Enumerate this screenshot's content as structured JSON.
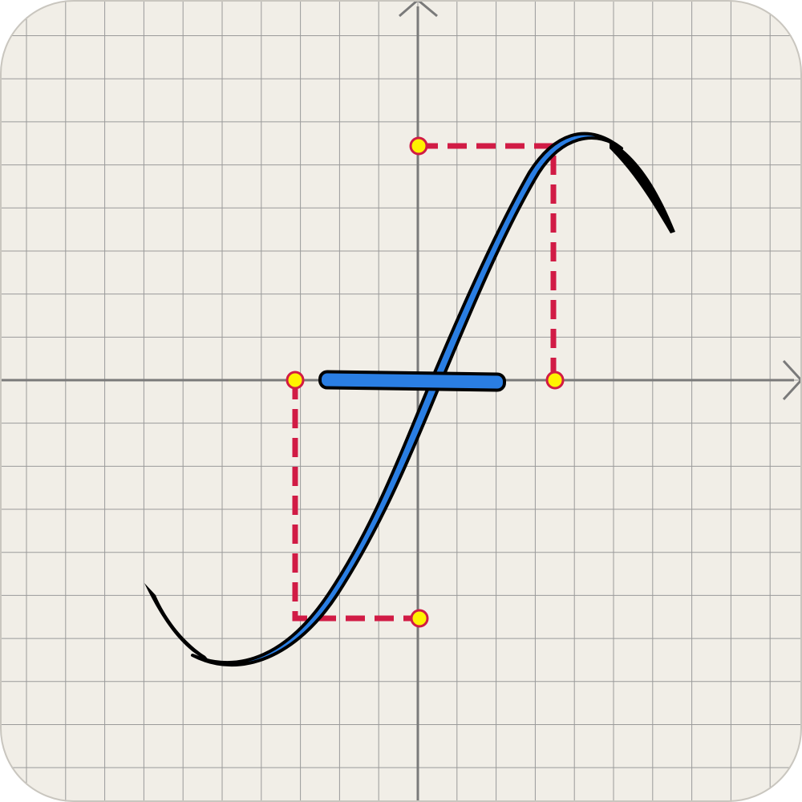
{
  "app_icon": {
    "icon_name": "function-graph-icon",
    "glyph": "f",
    "colors": {
      "background": "#f1eee7",
      "border": "#c9c6bf",
      "grid_minor": "#9a9a9a",
      "axis": "#7a7a7a",
      "curve_fill": "#2a7ee3",
      "curve_outline": "#000000",
      "guide_dash": "#d11b45",
      "point_fill": "#fff200",
      "point_stroke": "#d11b45"
    }
  }
}
